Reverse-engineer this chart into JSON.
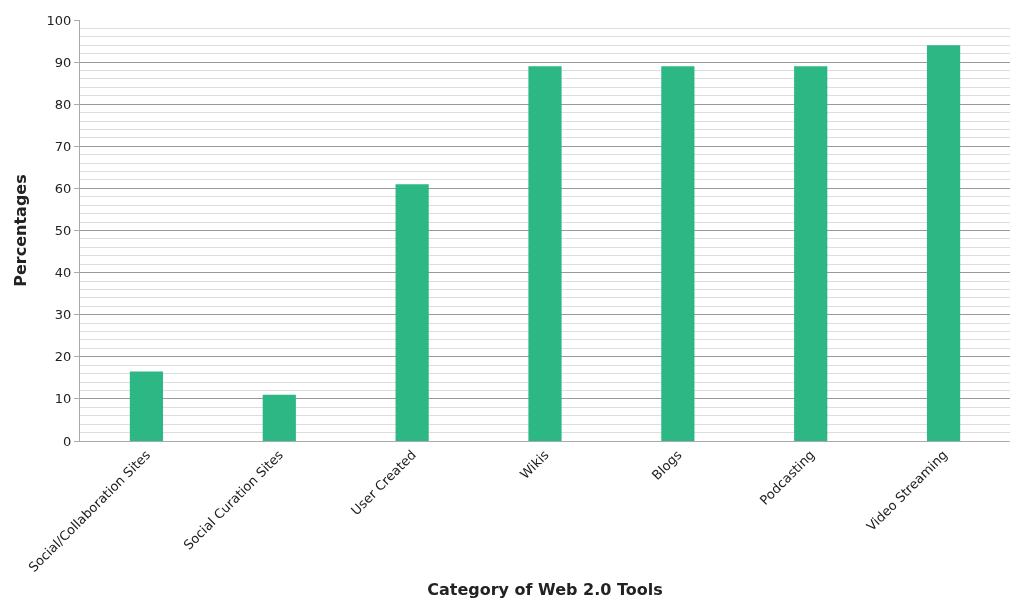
{
  "chart_data": {
    "type": "bar",
    "xlabel": "Category of Web 2.0 Tools",
    "ylabel": "Percentages",
    "categories": [
      "Social/Collaboration Sites",
      "Social Curation Sites",
      "User Created",
      "Wikis",
      "Blogs",
      "Podcasting",
      "Video Streaming"
    ],
    "values": [
      16.5,
      11,
      61,
      89,
      89,
      89,
      94
    ],
    "color": "#2cb784",
    "ylim": [
      0,
      100
    ],
    "yticks": [
      0,
      10,
      20,
      30,
      40,
      50,
      60,
      70,
      80,
      90,
      100
    ],
    "grid": "y"
  }
}
